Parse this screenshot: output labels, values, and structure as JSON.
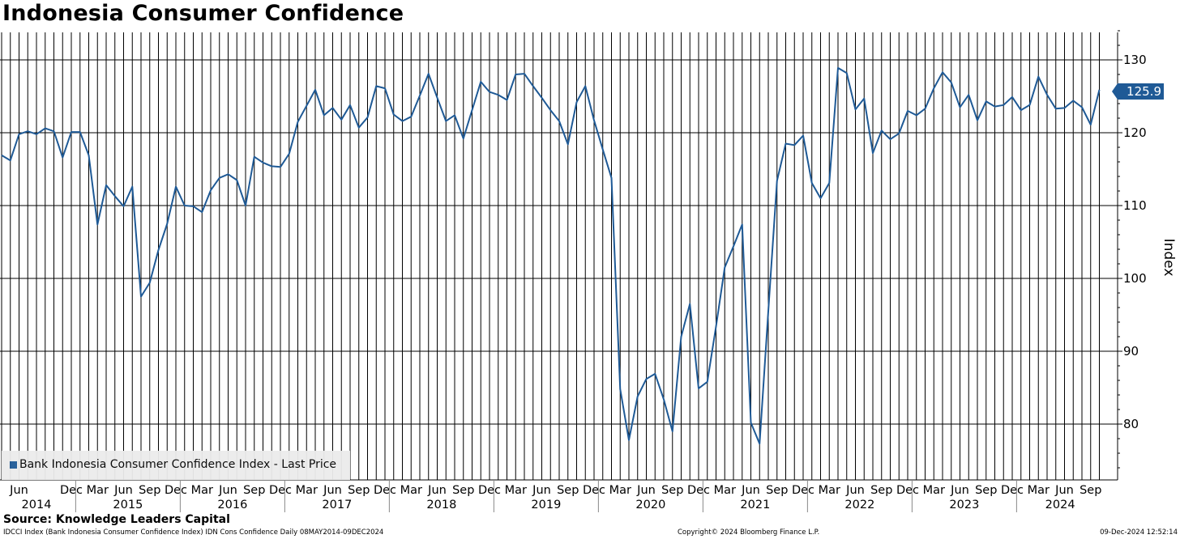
{
  "title": "Indonesia Consumer Confidence",
  "legend": {
    "label": "Bank Indonesia Consumer Confidence Index - Last Price",
    "color": "#1f5a96"
  },
  "source": "Source: Knowledge Leaders Capital",
  "footer": {
    "left": "IDCCI Index (Bank Indonesia Consumer Confidence Index) IDN Cons Confidence  Daily 08MAY2014-09DEC2024",
    "middle": "Copyright© 2024 Bloomberg Finance L.P.",
    "right": "09-Dec-2024 12:52:14"
  },
  "last_value_label": "125.9",
  "chart_data": {
    "type": "line",
    "title": "Indonesia Consumer Confidence",
    "ylabel": "Index",
    "xlabel": "",
    "ylim": [
      73,
      135
    ],
    "yticks": [
      80,
      90,
      100,
      110,
      120,
      130
    ],
    "grid": true,
    "legend_position": "bottom-left",
    "series": [
      {
        "name": "Bank Indonesia Consumer Confidence Index - Last Price",
        "color": "#1f5a96",
        "start": "2014-04",
        "frequency": "monthly",
        "values": [
          116.9,
          116.2,
          119.8,
          120.2,
          119.8,
          120.6,
          120.2,
          116.6,
          120.1,
          120.1,
          116.9,
          107.4,
          112.8,
          111.3,
          109.9,
          112.6,
          97.5,
          99.4,
          103.9,
          107.5,
          112.6,
          110.0,
          109.9,
          109.1,
          112.1,
          113.8,
          114.3,
          113.5,
          110.0,
          116.7,
          115.9,
          115.4,
          115.3,
          117.1,
          121.5,
          123.7,
          125.9,
          122.4,
          123.4,
          121.8,
          123.8,
          120.7,
          122.1,
          126.4,
          126.1,
          122.5,
          121.6,
          122.2,
          125.1,
          128.1,
          124.8,
          121.6,
          122.4,
          119.2,
          123.1,
          127.0,
          125.6,
          125.2,
          124.5,
          128.0,
          128.1,
          126.4,
          124.8,
          123.1,
          121.6,
          118.4,
          124.2,
          126.4,
          121.7,
          117.7,
          113.8,
          84.8,
          77.8,
          83.8,
          86.2,
          86.9,
          83.4,
          79.0,
          92.0,
          96.5,
          84.9,
          85.8,
          93.4,
          101.5,
          104.4,
          107.4,
          80.2,
          77.3,
          95.5,
          113.4,
          118.5,
          118.3,
          119.6,
          113.1,
          111.0,
          113.1,
          128.9,
          128.2,
          123.2,
          124.7,
          117.2,
          120.3,
          119.1,
          119.9,
          123.0,
          122.4,
          123.3,
          126.1,
          128.3,
          126.9,
          123.5,
          125.2,
          121.7,
          124.3,
          123.6,
          123.8,
          124.9,
          123.1,
          123.8,
          127.7,
          125.2,
          123.3,
          123.4,
          124.4,
          123.5,
          121.1,
          125.9
        ]
      }
    ],
    "month_tick_labels": [
      {
        "month": "2014-06",
        "label": "Jun"
      },
      {
        "month": "2014-12",
        "label": "Dec"
      },
      {
        "month": "2015-03",
        "label": "Mar"
      },
      {
        "month": "2015-06",
        "label": "Jun"
      },
      {
        "month": "2015-09",
        "label": "Sep"
      },
      {
        "month": "2015-12",
        "label": "Dec"
      },
      {
        "month": "2016-03",
        "label": "Mar"
      },
      {
        "month": "2016-06",
        "label": "Jun"
      },
      {
        "month": "2016-09",
        "label": "Sep"
      },
      {
        "month": "2016-12",
        "label": "Dec"
      },
      {
        "month": "2017-03",
        "label": "Mar"
      },
      {
        "month": "2017-06",
        "label": "Jun"
      },
      {
        "month": "2017-09",
        "label": "Sep"
      },
      {
        "month": "2017-12",
        "label": "Dec"
      },
      {
        "month": "2018-03",
        "label": "Mar"
      },
      {
        "month": "2018-06",
        "label": "Jun"
      },
      {
        "month": "2018-09",
        "label": "Sep"
      },
      {
        "month": "2018-12",
        "label": "Dec"
      },
      {
        "month": "2019-03",
        "label": "Mar"
      },
      {
        "month": "2019-06",
        "label": "Jun"
      },
      {
        "month": "2019-09",
        "label": "Sep"
      },
      {
        "month": "2019-12",
        "label": "Dec"
      },
      {
        "month": "2020-03",
        "label": "Mar"
      },
      {
        "month": "2020-06",
        "label": "Jun"
      },
      {
        "month": "2020-09",
        "label": "Sep"
      },
      {
        "month": "2020-12",
        "label": "Dec"
      },
      {
        "month": "2021-03",
        "label": "Mar"
      },
      {
        "month": "2021-06",
        "label": "Jun"
      },
      {
        "month": "2021-09",
        "label": "Sep"
      },
      {
        "month": "2021-12",
        "label": "Dec"
      },
      {
        "month": "2022-03",
        "label": "Mar"
      },
      {
        "month": "2022-06",
        "label": "Jun"
      },
      {
        "month": "2022-09",
        "label": "Sep"
      },
      {
        "month": "2022-12",
        "label": "Dec"
      },
      {
        "month": "2023-03",
        "label": "Mar"
      },
      {
        "month": "2023-06",
        "label": "Jun"
      },
      {
        "month": "2023-09",
        "label": "Sep"
      },
      {
        "month": "2023-12",
        "label": "Dec"
      },
      {
        "month": "2024-03",
        "label": "Mar"
      },
      {
        "month": "2024-06",
        "label": "Jun"
      },
      {
        "month": "2024-09",
        "label": "Sep"
      }
    ],
    "year_labels": [
      "2014",
      "2015",
      "2016",
      "2017",
      "2018",
      "2019",
      "2020",
      "2021",
      "2022",
      "2023",
      "2024"
    ]
  }
}
